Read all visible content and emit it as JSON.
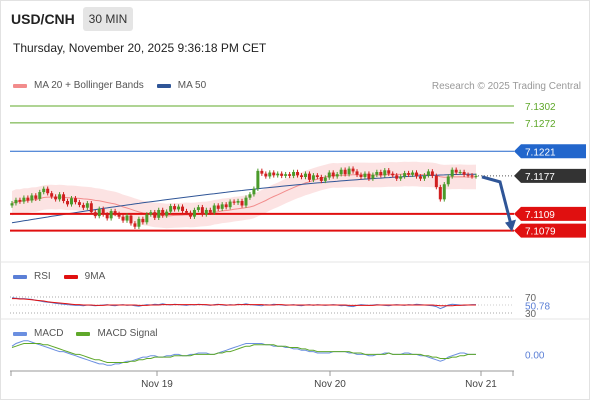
{
  "header": {
    "symbol": "USD/CNH",
    "timeframe": "30 MIN",
    "datetime": "Thursday, November 20, 2025 9:36:18 PM CET"
  },
  "legend_main": [
    {
      "label": "MA 20 + Bollinger Bands",
      "color": "#f28c8c"
    },
    {
      "label": "MA 50",
      "color": "#2f5597"
    }
  ],
  "credit": "Research © 2025 Trading Central",
  "legend_rsi": [
    {
      "label": "RSI",
      "color": "#5b7fd6"
    },
    {
      "label": "9MA",
      "color": "#e01010"
    }
  ],
  "legend_macd": [
    {
      "label": "MACD",
      "color": "#6b8fe0"
    },
    {
      "label": "MACD Signal",
      "color": "#5fa82a"
    }
  ],
  "colors": {
    "resistance": "#5fa82a",
    "pivot": "#2266cc",
    "support": "#e01010",
    "current": "#333333",
    "arrow": "#2f5597",
    "bull": "#4a9a2a",
    "bear": "#d02020",
    "band_fill": "#fbdada"
  },
  "chart_data": [
    {
      "type": "candlestick",
      "panel": "price",
      "ylim": [
        7.103,
        7.132
      ],
      "x_ticks": [
        "Nov 19",
        "Nov 20",
        "Nov 21"
      ],
      "levels": [
        {
          "label": "7.1302",
          "value": 7.1302,
          "kind": "resistance"
        },
        {
          "label": "7.1272",
          "value": 7.1272,
          "kind": "resistance"
        },
        {
          "label": "7.1221",
          "value": 7.1221,
          "kind": "pivot"
        },
        {
          "label": "7.1177",
          "value": 7.1177,
          "kind": "current"
        },
        {
          "label": "7.1109",
          "value": 7.1109,
          "kind": "support"
        },
        {
          "label": "7.1079",
          "value": 7.1079,
          "kind": "support"
        }
      ],
      "closes": [
        7.1128,
        7.1134,
        7.1131,
        7.1138,
        7.1133,
        7.1142,
        7.1136,
        7.1148,
        7.1154,
        7.1146,
        7.114,
        7.1135,
        7.1144,
        7.1132,
        7.1126,
        7.1137,
        7.113,
        7.1125,
        7.112,
        7.1128,
        7.1112,
        7.1105,
        7.1118,
        7.1108,
        7.1101,
        7.1114,
        7.1109,
        7.1104,
        7.1097,
        7.1106,
        7.1092,
        7.1086,
        7.11,
        7.1094,
        7.1108,
        7.1112,
        7.1102,
        7.1116,
        7.1106,
        7.1113,
        7.1123,
        7.1117,
        7.1122,
        7.1114,
        7.1111,
        7.1104,
        7.1116,
        7.1121,
        7.1108,
        7.1116,
        7.1111,
        7.1124,
        7.1118,
        7.1126,
        7.1121,
        7.1131,
        7.1129,
        7.1132,
        7.1124,
        7.1138,
        7.1144,
        7.1154,
        7.1186,
        7.1181,
        7.1176,
        7.1183,
        7.1178,
        7.1181,
        7.1177,
        7.118,
        7.1177,
        7.1184,
        7.1178,
        7.1175,
        7.1181,
        7.117,
        7.1178,
        7.1175,
        7.1168,
        7.1174,
        7.1183,
        7.1176,
        7.118,
        7.1188,
        7.118,
        7.119,
        7.1185,
        7.1179,
        7.1175,
        7.1181,
        7.1172,
        7.1179,
        7.1184,
        7.1178,
        7.1187,
        7.1181,
        7.1178,
        7.1172,
        7.1176,
        7.1182,
        7.1179,
        7.1183,
        7.1176,
        7.1172,
        7.1178,
        7.1185,
        7.1177,
        7.1157,
        7.1135,
        7.1162,
        7.1176,
        7.1188,
        7.1183,
        7.1184,
        7.1179,
        7.1178,
        7.1176,
        7.1177
      ],
      "bollinger": {
        "ma20": 7.116,
        "band_half_width": 0.0022
      },
      "ma50_start": 7.1093,
      "ma50_end": 7.118,
      "projection": {
        "from": 7.1177,
        "to": 7.1079
      }
    },
    {
      "type": "line",
      "panel": "rsi",
      "ylim": [
        30,
        70
      ],
      "y_ticks": [
        "70",
        "30"
      ],
      "current_label": "50.78",
      "series": [
        {
          "name": "RSI",
          "values": [
            68,
            67,
            66,
            66,
            65,
            64,
            62,
            60,
            58,
            57,
            56,
            54,
            53,
            52,
            51,
            50,
            49,
            49,
            48,
            50,
            49,
            48,
            49,
            50,
            51,
            49,
            48,
            50,
            51,
            49,
            50,
            48,
            47,
            49,
            51,
            50,
            52,
            51,
            53,
            51,
            50,
            52,
            51,
            50,
            49,
            51,
            50,
            52,
            51,
            50,
            49,
            51,
            52,
            50,
            49,
            51,
            50,
            52,
            51,
            53,
            51,
            50,
            49,
            48,
            51,
            50,
            52,
            51,
            50,
            49,
            50,
            51,
            49,
            48,
            50,
            51,
            49,
            51,
            50,
            49,
            50,
            51,
            50,
            48,
            49,
            47,
            46,
            49,
            51,
            50,
            49,
            50,
            51,
            50,
            49,
            48,
            50,
            51,
            50,
            49,
            51,
            50,
            52,
            51,
            50,
            49,
            48,
            46,
            41,
            45,
            50,
            52,
            51,
            50,
            49,
            50,
            51,
            51
          ]
        },
        {
          "name": "9MA",
          "values": [
            66,
            66,
            65,
            65,
            64,
            63,
            62,
            61,
            60,
            58,
            57,
            56,
            55,
            54,
            53,
            52,
            51,
            51,
            50,
            50,
            50,
            49,
            49,
            49,
            50,
            50,
            50,
            50,
            50,
            50,
            50,
            50,
            49,
            49,
            49,
            50,
            50,
            50,
            51,
            51,
            51,
            51,
            51,
            51,
            51,
            51,
            51,
            51,
            51,
            51,
            50,
            50,
            51,
            51,
            50,
            50,
            50,
            51,
            51,
            51,
            51,
            51,
            51,
            51,
            50,
            50,
            50,
            51,
            51,
            50,
            50,
            50,
            50,
            50,
            50,
            50,
            50,
            50,
            50,
            50,
            50,
            50,
            50,
            50,
            50,
            49,
            49,
            49,
            49,
            49,
            49,
            49,
            50,
            50,
            50,
            50,
            50,
            50,
            50,
            50,
            50,
            50,
            50,
            50,
            50,
            50,
            50,
            49,
            48,
            48,
            48,
            48,
            49,
            49,
            50,
            50,
            50,
            50
          ]
        }
      ]
    },
    {
      "type": "line",
      "panel": "macd",
      "y_ticks": [
        "0.00"
      ],
      "ylim": [
        -0.001,
        0.0012
      ],
      "series": [
        {
          "name": "MACD",
          "values": [
            0.0006,
            0.0008,
            0.0009,
            0.001,
            0.001,
            0.0009,
            0.0008,
            0.0007,
            0.0006,
            0.0005,
            0.0004,
            0.0003,
            0.0002,
            0.0002,
            0.0001,
            0.0,
            -0.0001,
            -0.0002,
            -0.0003,
            -0.0004,
            -0.0005,
            -0.0006,
            -0.0007,
            -0.0007,
            -0.0008,
            -0.0008,
            -0.0007,
            -0.0007,
            -0.0006,
            -0.0005,
            -0.0005,
            -0.0004,
            -0.0003,
            -0.0002,
            -0.0002,
            -0.0001,
            -0.0001,
            -0.0002,
            -0.0002,
            -0.0001,
            -0.0001,
            0.0,
            0.0,
            -0.0001,
            -0.0001,
            0.0,
            0.0,
            0.0001,
            0.0001,
            0.0001,
            0.0,
            0.0,
            0.0001,
            0.0002,
            0.0003,
            0.0004,
            0.0005,
            0.0006,
            0.0007,
            0.0008,
            0.0008,
            0.0008,
            0.0008,
            0.0008,
            0.0007,
            0.0007,
            0.0006,
            0.0006,
            0.0006,
            0.0005,
            0.0005,
            0.0004,
            0.0004,
            0.0003,
            0.0003,
            0.0002,
            0.0002,
            0.0001,
            0.0001,
            0.0001,
            0.0001,
            0.0002,
            0.0002,
            0.0002,
            0.0002,
            0.0001,
            0.0001,
            0.0,
            0.0,
            0.0,
            -0.0001,
            -0.0001,
            0.0,
            0.0,
            0.0001,
            0.0001,
            0.0,
            0.0,
            0.0,
            0.0001,
            0.0001,
            0.0,
            0.0,
            -0.0001,
            -0.0001,
            -0.0002,
            -0.0003,
            -0.0004,
            -0.0005,
            -0.0004,
            -0.0002,
            -0.0001,
            0.0,
            0.0001,
            0.0001,
            0.0,
            0.0,
            0.0
          ]
        },
        {
          "name": "MACD Signal",
          "values": [
            0.0005,
            0.0006,
            0.0007,
            0.0008,
            0.0008,
            0.0008,
            0.0008,
            0.0008,
            0.0007,
            0.0007,
            0.0006,
            0.0005,
            0.0004,
            0.0003,
            0.0002,
            0.0001,
            0.0,
            0.0,
            -0.0001,
            -0.0002,
            -0.0003,
            -0.0004,
            -0.0004,
            -0.0005,
            -0.0006,
            -0.0006,
            -0.0006,
            -0.0006,
            -0.0006,
            -0.0006,
            -0.0005,
            -0.0005,
            -0.0004,
            -0.0004,
            -0.0003,
            -0.0003,
            -0.0002,
            -0.0002,
            -0.0002,
            -0.0002,
            -0.0002,
            -0.0001,
            -0.0001,
            -0.0001,
            -0.0001,
            -0.0001,
            0.0,
            0.0,
            0.0,
            0.0,
            0.0,
            0.0,
            0.0001,
            0.0001,
            0.0002,
            0.0002,
            0.0003,
            0.0004,
            0.0005,
            0.0006,
            0.0006,
            0.0007,
            0.0007,
            0.0007,
            0.0007,
            0.0007,
            0.0007,
            0.0006,
            0.0006,
            0.0006,
            0.0005,
            0.0005,
            0.0005,
            0.0004,
            0.0004,
            0.0003,
            0.0003,
            0.0002,
            0.0002,
            0.0002,
            0.0002,
            0.0002,
            0.0002,
            0.0002,
            0.0002,
            0.0002,
            0.0001,
            0.0001,
            0.0001,
            0.0,
            0.0,
            0.0,
            0.0,
            0.0,
            0.0,
            0.0001,
            0.0,
            0.0,
            0.0,
            0.0,
            0.0,
            0.0,
            0.0,
            0.0,
            -0.0001,
            -0.0001,
            -0.0002,
            -0.0002,
            -0.0003,
            -0.0003,
            -0.0003,
            -0.0002,
            -0.0002,
            -0.0001,
            -0.0001,
            0.0,
            0.0,
            0.0
          ]
        }
      ]
    }
  ]
}
